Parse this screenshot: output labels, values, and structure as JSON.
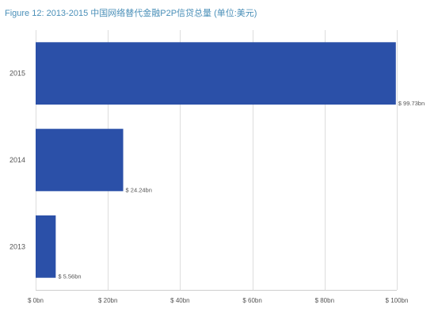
{
  "chart_data": {
    "type": "bar",
    "orientation": "horizontal",
    "title": "Figure 12: 2013-2015 中国网络替代金融P2P信贷总量 (单位:美元)",
    "categories": [
      "2015",
      "2014",
      "2013"
    ],
    "values": [
      99.73,
      24.24,
      5.56
    ],
    "data_labels": [
      "$ 99.73bn",
      "$ 24.24bn",
      "$ 5.56bn"
    ],
    "xlim": [
      0,
      100
    ],
    "xticks": [
      0,
      20,
      40,
      60,
      80,
      100
    ],
    "xtick_labels": [
      "$ 0bn",
      "$ 20bn",
      "$ 40bn",
      "$ 60bn",
      "$ 80bn",
      "$ 100bn"
    ],
    "xlabel": "",
    "ylabel": "",
    "grid": "vertical",
    "colors": {
      "bar": "#2b50a8",
      "grid": "#dddddd",
      "title": "#4a8fb8"
    }
  }
}
